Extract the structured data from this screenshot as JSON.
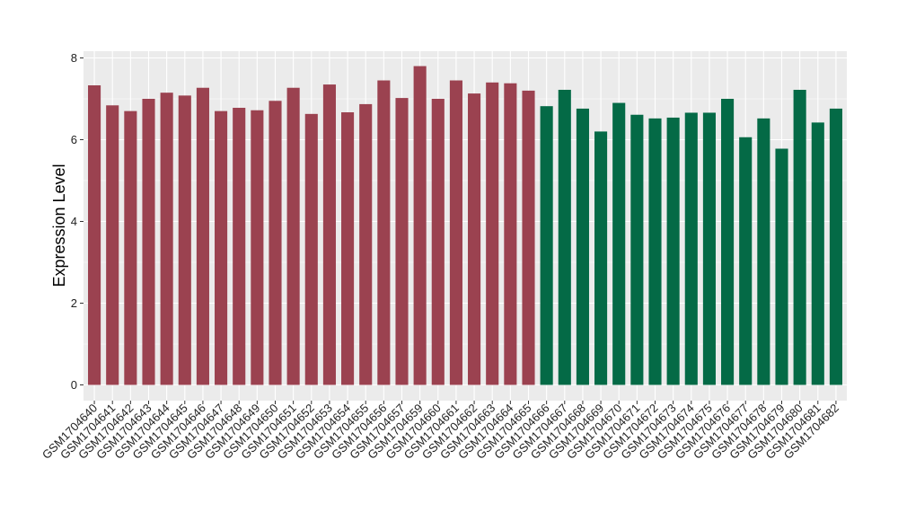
{
  "chart_data": {
    "type": "bar",
    "title": "",
    "xlabel": "",
    "ylabel": "Expression Level",
    "ylim": [
      0,
      8.2
    ],
    "yticks": [
      0,
      2,
      4,
      6,
      8
    ],
    "grid": true,
    "legend": "none",
    "colors": {
      "group1": "#9B4250",
      "group2": "#046A46",
      "panel": "#EBEBEB",
      "gridline": "#FFFFFF"
    },
    "categories": [
      "GSM1704640",
      "GSM1704641",
      "GSM1704642",
      "GSM1704643",
      "GSM1704644",
      "GSM1704645",
      "GSM1704646",
      "GSM1704647",
      "GSM1704648",
      "GSM1704649",
      "GSM1704650",
      "GSM1704651",
      "GSM1704652",
      "GSM1704653",
      "GSM1704654",
      "GSM1704655",
      "GSM1704656",
      "GSM1704657",
      "GSM1704659",
      "GSM1704660",
      "GSM1704661",
      "GSM1704662",
      "GSM1704663",
      "GSM1704664",
      "GSM1704665",
      "GSM1704666",
      "GSM1704667",
      "GSM1704668",
      "GSM1704669",
      "GSM1704670",
      "GSM1704671",
      "GSM1704672",
      "GSM1704673",
      "GSM1704674",
      "GSM1704675",
      "GSM1704676",
      "GSM1704677",
      "GSM1704678",
      "GSM1704679",
      "GSM1704680",
      "GSM1704681",
      "GSM1704682"
    ],
    "values": [
      7.33,
      6.84,
      6.7,
      7.0,
      7.15,
      7.08,
      7.27,
      6.7,
      6.78,
      6.72,
      6.95,
      7.27,
      6.63,
      7.35,
      6.67,
      6.87,
      7.45,
      7.02,
      7.8,
      7.0,
      7.45,
      7.13,
      7.4,
      7.38,
      7.2,
      6.82,
      7.22,
      6.76,
      6.2,
      6.9,
      6.61,
      6.52,
      6.54,
      6.66,
      6.66,
      7.0,
      6.06,
      6.52,
      5.78,
      7.22,
      6.42,
      6.76
    ],
    "bar_groups": [
      "group1",
      "group1",
      "group1",
      "group1",
      "group1",
      "group1",
      "group1",
      "group1",
      "group1",
      "group1",
      "group1",
      "group1",
      "group1",
      "group1",
      "group1",
      "group1",
      "group1",
      "group1",
      "group1",
      "group1",
      "group1",
      "group1",
      "group1",
      "group1",
      "group1",
      "group2",
      "group2",
      "group2",
      "group2",
      "group2",
      "group2",
      "group2",
      "group2",
      "group2",
      "group2",
      "group2",
      "group2",
      "group2",
      "group2",
      "group2",
      "group2",
      "group2"
    ]
  }
}
